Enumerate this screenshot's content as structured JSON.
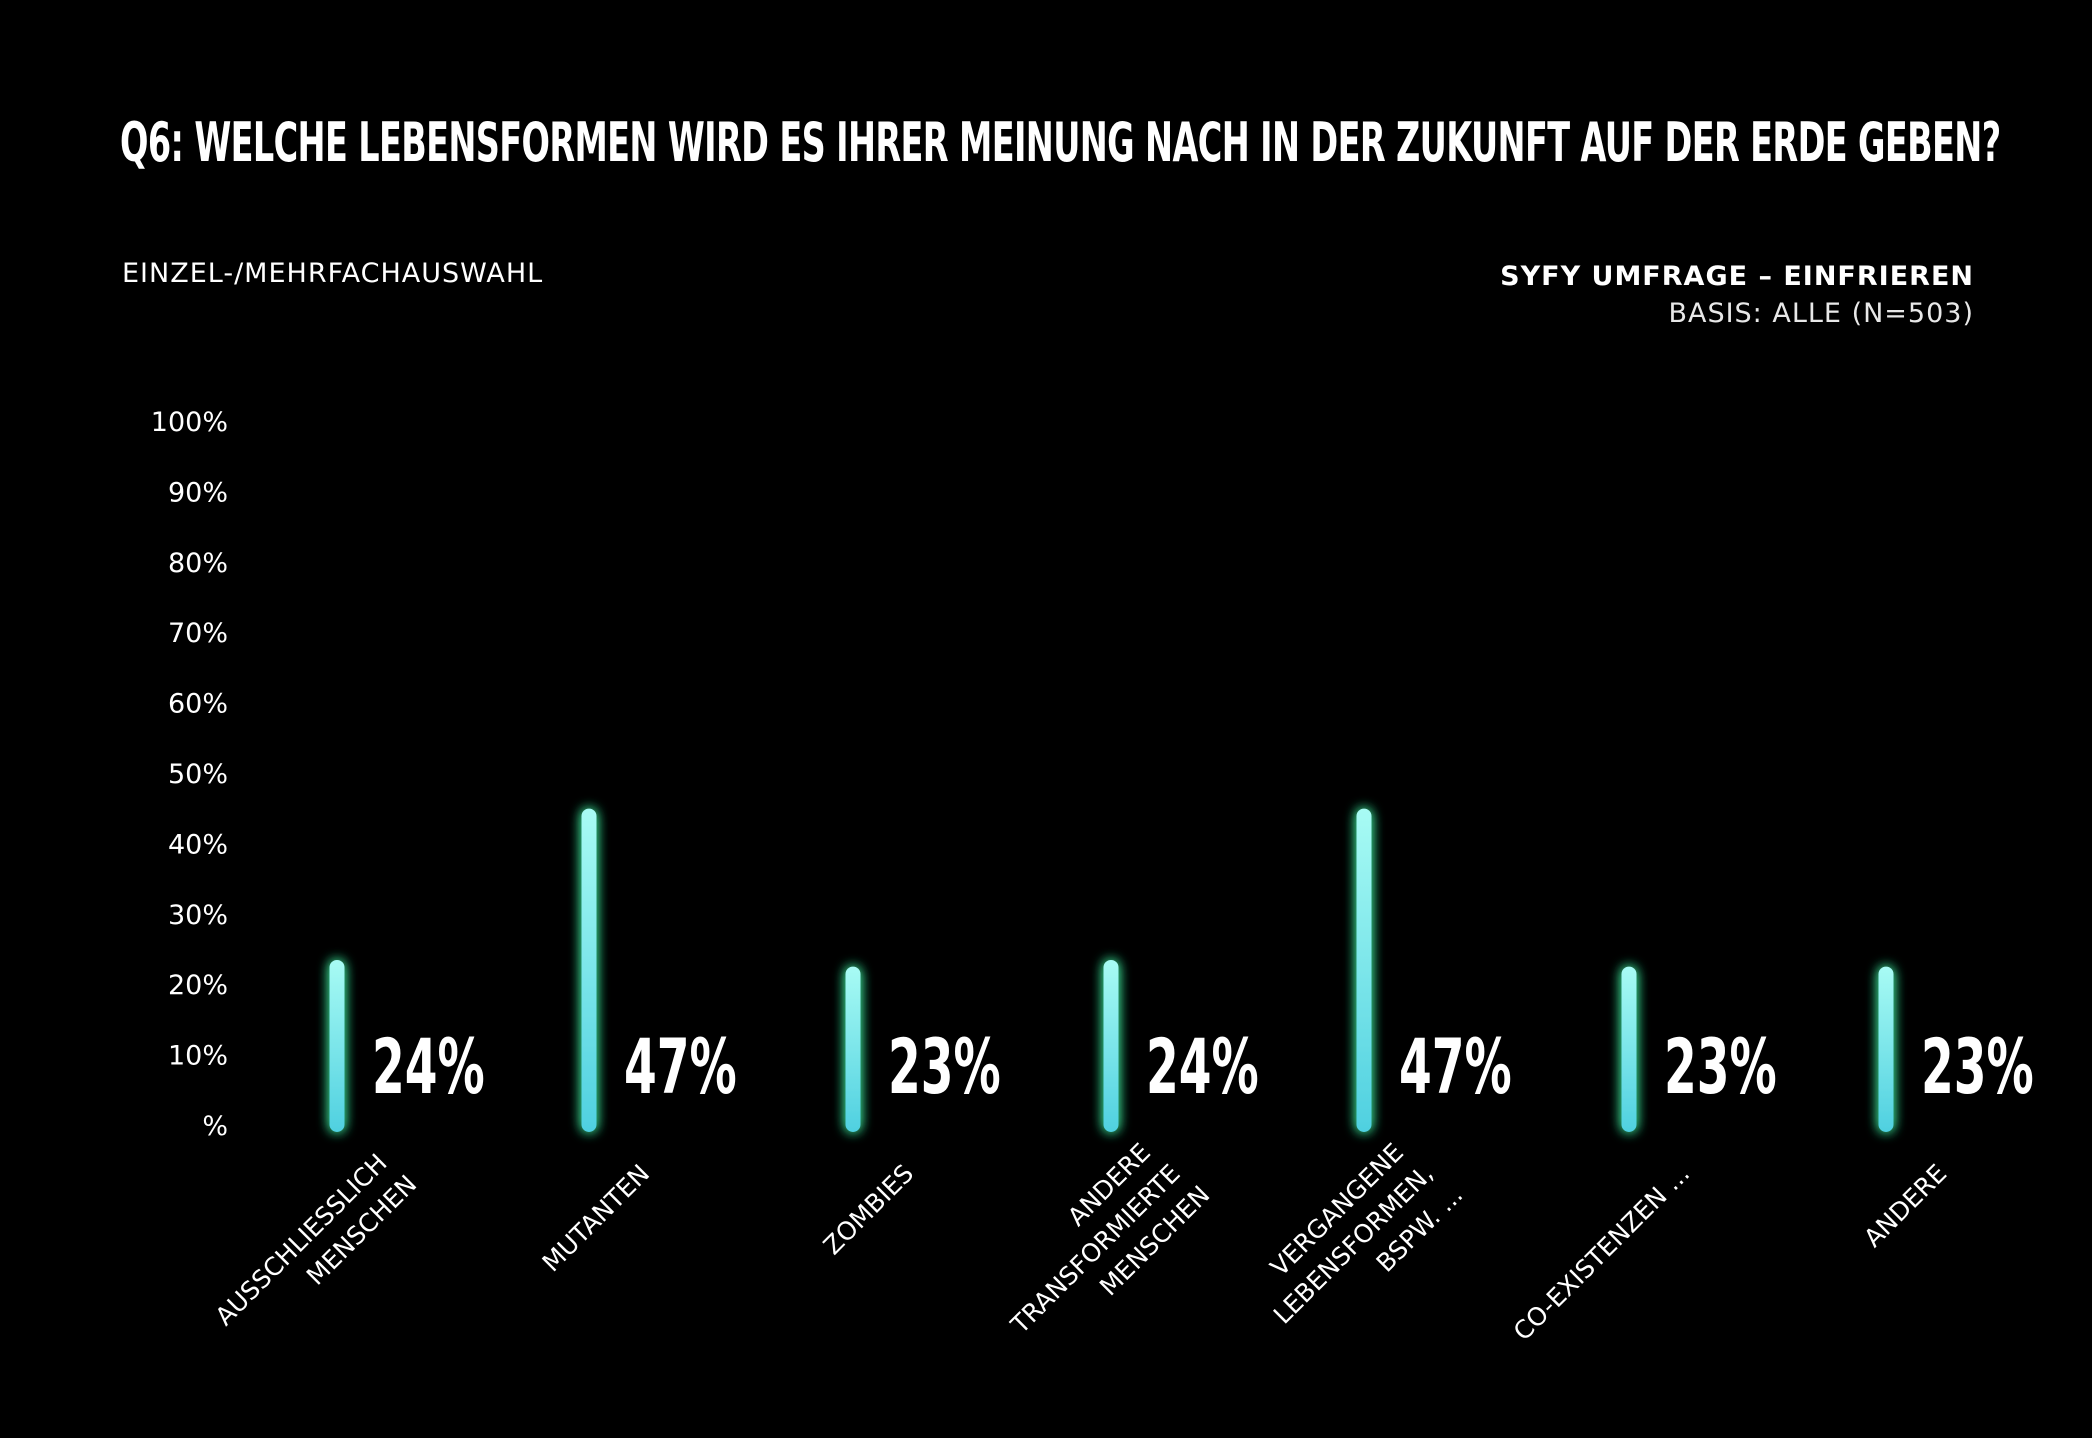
{
  "header": {
    "title": "Q6: Welche Lebensformen wird es Ihrer Meinung nach in der Zukunft auf der Erde geben?",
    "subtitle_left": "EINZEL-/MEHRFACHAUSWAHL",
    "source_name": "SYFY UMFRAGE – EINFRIEREN",
    "source_base": "BASIS: ALLE (N=503)"
  },
  "colors": {
    "background": "#000000",
    "bar_top": "#a8fbf4",
    "bar_bottom": "#4fd0e0",
    "glow": "#3df0a0",
    "text": "#ffffff"
  },
  "chart_data": {
    "type": "bar",
    "categories": [
      [
        "AUSSCHLIESSLICH",
        "MENSCHEN"
      ],
      [
        "MUTANTEN"
      ],
      [
        "ZOMBIES"
      ],
      [
        "ANDERE",
        "TRANSFORMIERTE",
        "MENSCHEN"
      ],
      [
        "VERGANGENE",
        "LEBENSFORMEN,",
        "BSPW. ..."
      ],
      [
        "CO-EXISTENZEN ..."
      ],
      [
        "ANDERE"
      ]
    ],
    "values": [
      24,
      47,
      23,
      24,
      47,
      23,
      23
    ],
    "value_labels": [
      "24%",
      "47%",
      "23%",
      "24%",
      "47%",
      "23%",
      "23%"
    ],
    "ylim": [
      0,
      100
    ],
    "yticks": [
      0,
      10,
      20,
      30,
      40,
      50,
      60,
      70,
      80,
      90,
      100
    ],
    "ytick_labels": [
      "%",
      "10%",
      "20%",
      "30%",
      "40%",
      "50%",
      "60%",
      "70%",
      "80%",
      "90%",
      "100%"
    ],
    "grid": false,
    "legend": "none"
  }
}
